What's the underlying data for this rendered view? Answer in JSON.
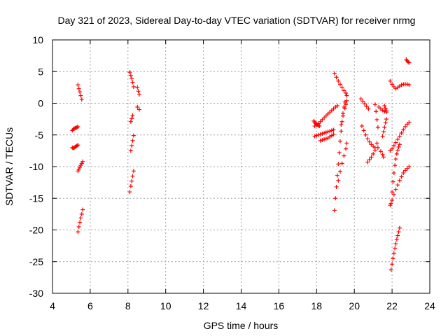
{
  "chart_data": {
    "type": "scatter",
    "title": "Day 321 of 2023, Sidereal Day-to-day VTEC variation (SDTVAR) for receiver nrmg",
    "xlabel": "GPS time / hours",
    "ylabel": "SDTVAR / TECUs",
    "xlim": [
      4,
      24
    ],
    "ylim": [
      -30,
      10
    ],
    "xticks": [
      "4",
      "6",
      "8",
      "10",
      "12",
      "14",
      "16",
      "18",
      "20",
      "22",
      "24"
    ],
    "yticks": [
      "10",
      "5",
      "0",
      "-5",
      "-10",
      "-15",
      "-20",
      "-25",
      "-30"
    ],
    "grid": true,
    "marker": "plus",
    "color": "#ff0000",
    "tracks": [
      {
        "x": [
          5.05,
          5.1,
          5.15,
          5.2,
          5.25,
          5.3,
          5.35
        ],
        "y": [
          -4.3,
          -4.1,
          -4.0,
          -3.9,
          -3.9,
          -3.8,
          -3.7
        ]
      },
      {
        "x": [
          5.05,
          5.1,
          5.15,
          5.2,
          5.25,
          5.3,
          5.35
        ],
        "y": [
          -7.0,
          -7.1,
          -7.0,
          -6.9,
          -6.8,
          -6.7,
          -6.6
        ]
      },
      {
        "x": [
          5.35,
          5.4,
          5.45,
          5.5,
          5.55
        ],
        "y": [
          2.9,
          2.3,
          1.8,
          1.2,
          0.6
        ]
      },
      {
        "x": [
          5.35,
          5.4,
          5.45,
          5.5,
          5.55,
          5.6
        ],
        "y": [
          -10.7,
          -10.4,
          -10.1,
          -9.8,
          -9.5,
          -9.2
        ]
      },
      {
        "x": [
          5.35,
          5.4,
          5.45,
          5.5,
          5.55,
          5.6
        ],
        "y": [
          -20.3,
          -19.5,
          -18.8,
          -18.1,
          -17.5,
          -16.8
        ]
      },
      {
        "x": [
          8.1,
          8.15,
          8.2,
          8.25,
          8.3
        ],
        "y": [
          4.9,
          4.4,
          3.9,
          3.3,
          2.6
        ]
      },
      {
        "x": [
          8.5,
          8.55,
          8.6
        ],
        "y": [
          2.5,
          1.9,
          1.4
        ]
      },
      {
        "x": [
          8.5,
          8.6
        ],
        "y": [
          -0.6,
          -1.0
        ]
      },
      {
        "x": [
          8.15,
          8.2,
          8.25
        ],
        "y": [
          -2.9,
          -2.4,
          -1.9
        ]
      },
      {
        "x": [
          8.15,
          8.2,
          8.25,
          8.3
        ],
        "y": [
          -7.5,
          -6.7,
          -5.9,
          -5.1
        ]
      },
      {
        "x": [
          8.1,
          8.15,
          8.2,
          8.25,
          8.3
        ],
        "y": [
          -14.0,
          -13.1,
          -12.3,
          -11.5,
          -10.7
        ]
      },
      {
        "x": [
          17.85,
          17.9,
          17.95,
          18.0,
          18.05,
          18.1,
          18.15
        ],
        "y": [
          -2.8,
          -3.0,
          -3.2,
          -3.3,
          -3.4,
          -3.5,
          -3.6
        ]
      },
      {
        "x": [
          17.9,
          18.0,
          18.1,
          18.2,
          18.3,
          18.4,
          18.5,
          18.6,
          18.7,
          18.8,
          18.9,
          19.0,
          19.1
        ],
        "y": [
          -3.6,
          -3.4,
          -3.2,
          -2.9,
          -2.6,
          -2.3,
          -2.0,
          -1.7,
          -1.4,
          -1.1,
          -0.9,
          -0.6,
          -0.4
        ]
      },
      {
        "x": [
          17.9,
          18.0,
          18.1,
          18.2,
          18.3,
          18.4,
          18.5,
          18.6,
          18.7,
          18.8,
          18.9
        ],
        "y": [
          -5.2,
          -5.1,
          -5.0,
          -4.9,
          -4.8,
          -4.7,
          -4.6,
          -4.5,
          -4.4,
          -4.3,
          -4.2
        ]
      },
      {
        "x": [
          18.2,
          18.3,
          18.4,
          18.5,
          18.6,
          18.7,
          18.8,
          18.9
        ],
        "y": [
          -5.9,
          -5.8,
          -5.7,
          -5.6,
          -5.5,
          -5.3,
          -5.1,
          -4.9
        ]
      },
      {
        "x": [
          18.95,
          19.05,
          19.15,
          19.25,
          19.35,
          19.45,
          19.55,
          19.6
        ],
        "y": [
          4.7,
          4.1,
          3.5,
          3.0,
          2.5,
          2.0,
          1.6,
          1.2
        ]
      },
      {
        "x": [
          18.95,
          19.0,
          19.05,
          19.1,
          19.15,
          19.2,
          19.25,
          19.3,
          19.35,
          19.4,
          19.45,
          19.5
        ],
        "y": [
          -16.9,
          -15.0,
          -13.2,
          -11.4,
          -9.6,
          -7.8,
          -6.0,
          -4.4,
          -2.9,
          -1.6,
          -0.6,
          0.2
        ]
      },
      {
        "x": [
          19.15,
          19.25,
          19.35,
          19.45,
          19.55,
          19.6
        ],
        "y": [
          -12.2,
          -10.8,
          -9.5,
          -8.3,
          -7.2,
          -6.3
        ]
      },
      {
        "x": [
          19.3,
          19.4,
          19.5,
          19.55,
          19.6
        ],
        "y": [
          -3.4,
          -2.0,
          -0.8,
          -0.2,
          0.4
        ]
      },
      {
        "x": [
          20.35,
          20.45,
          20.55,
          20.65,
          20.75
        ],
        "y": [
          0.7,
          0.3,
          -0.1,
          -0.5,
          -0.9
        ]
      },
      {
        "x": [
          20.4,
          20.5,
          20.6,
          20.7,
          20.8,
          20.9,
          21.0,
          21.1
        ],
        "y": [
          -3.6,
          -4.3,
          -5.0,
          -5.6,
          -6.1,
          -6.5,
          -6.8,
          -7.0
        ]
      },
      {
        "x": [
          20.7,
          20.8,
          20.9,
          21.0,
          21.1
        ],
        "y": [
          -9.3,
          -8.9,
          -8.5,
          -8.0,
          -7.4
        ]
      },
      {
        "x": [
          21.1,
          21.15,
          21.2,
          21.25
        ],
        "y": [
          -0.2,
          -1.3,
          -2.6,
          -3.8
        ]
      },
      {
        "x": [
          21.2,
          21.25
        ],
        "y": [
          -6.3,
          -7.0
        ]
      },
      {
        "x": [
          21.3,
          21.4,
          21.5,
          21.6,
          21.7
        ],
        "y": [
          -0.6,
          -0.9,
          -1.1,
          -1.3,
          -1.4
        ]
      },
      {
        "x": [
          21.5,
          21.55,
          21.6,
          21.65,
          21.7
        ],
        "y": [
          -5.2,
          -4.5,
          -3.8,
          -3.1,
          -2.5
        ]
      },
      {
        "x": [
          21.4,
          21.5,
          21.55
        ],
        "y": [
          -7.6,
          -8.1,
          -8.5
        ]
      },
      {
        "x": [
          21.6,
          21.65,
          21.7
        ],
        "y": [
          -0.4,
          -0.8,
          -1.2
        ]
      },
      {
        "x": [
          21.9,
          22.0,
          22.1,
          22.2,
          22.3,
          22.4,
          22.5,
          22.6,
          22.7,
          22.8,
          22.9
        ],
        "y": [
          3.5,
          3.0,
          2.6,
          2.3,
          2.5,
          2.7,
          2.9,
          3.0,
          3.0,
          3.0,
          2.9
        ]
      },
      {
        "x": [
          22.75,
          22.8,
          22.85,
          22.9
        ],
        "y": [
          6.9,
          6.7,
          6.5,
          6.4
        ]
      },
      {
        "x": [
          21.9,
          22.0,
          22.1,
          22.2,
          22.3,
          22.4,
          22.5,
          22.6,
          22.7,
          22.8,
          22.9
        ],
        "y": [
          -7.5,
          -7.2,
          -6.7,
          -6.2,
          -5.7,
          -5.2,
          -4.7,
          -4.2,
          -3.7,
          -3.3,
          -3.0
        ]
      },
      {
        "x": [
          21.9,
          22.0,
          22.1,
          22.2,
          22.3,
          22.4,
          22.5,
          22.6,
          22.7,
          22.8,
          22.9
        ],
        "y": [
          -16.1,
          -15.3,
          -14.4,
          -13.6,
          -12.9,
          -12.2,
          -11.6,
          -11.0,
          -10.6,
          -10.3,
          -10.0
        ]
      },
      {
        "x": [
          21.95,
          22.0,
          22.05,
          22.1,
          22.15,
          22.2,
          22.25,
          22.3,
          22.35,
          22.4
        ],
        "y": [
          -15.8,
          -14.0,
          -12.4,
          -11.0,
          -9.8,
          -8.8,
          -8.0,
          -7.4,
          -6.9,
          -6.5
        ]
      },
      {
        "x": [
          21.95,
          22.0,
          22.05,
          22.1,
          22.15,
          22.2,
          22.25,
          22.3,
          22.35,
          22.4
        ],
        "y": [
          -26.3,
          -25.4,
          -24.5,
          -23.7,
          -22.9,
          -22.2,
          -21.5,
          -20.9,
          -20.3,
          -19.7
        ]
      }
    ]
  }
}
